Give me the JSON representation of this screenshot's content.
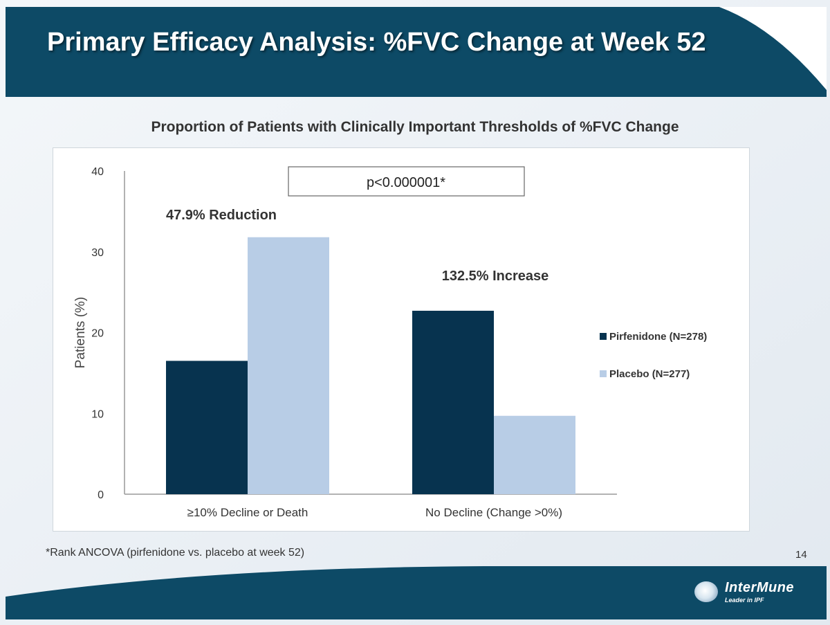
{
  "slide": {
    "title": "Primary Efficacy Analysis: %FVC Change at Week 52",
    "subtitle": "Proportion of Patients with Clinically Important Thresholds of %FVC Change",
    "footnote": "*Rank ANCOVA (pirfenidone vs. placebo at week 52)",
    "page_number": "14",
    "logo": {
      "name": "InterMune",
      "tagline": "Leader in IPF"
    },
    "colors": {
      "header": "#0d4a66",
      "background": "#e9eff4"
    }
  },
  "chart_data": {
    "type": "bar",
    "categories": [
      "≥10% Decline or Death",
      "No Decline (Change >0%)"
    ],
    "series": [
      {
        "name": "Pirfenidone (N=278)",
        "values": [
          16.5,
          22.7
        ],
        "color": "#07334f"
      },
      {
        "name": "Placebo (N=277)",
        "values": [
          31.8,
          9.7
        ],
        "color": "#b8cde6"
      }
    ],
    "ylabel": "Patients (%)",
    "xlabel": "",
    "ylim": [
      0,
      40
    ],
    "yticks": [
      0,
      10,
      20,
      30,
      40
    ],
    "grid": false,
    "legend": "right",
    "annotations": [
      {
        "text": "47.9% Reduction",
        "category": 0
      },
      {
        "text": "132.5% Increase",
        "category": 1
      }
    ],
    "pvalue": "p<0.000001*"
  }
}
